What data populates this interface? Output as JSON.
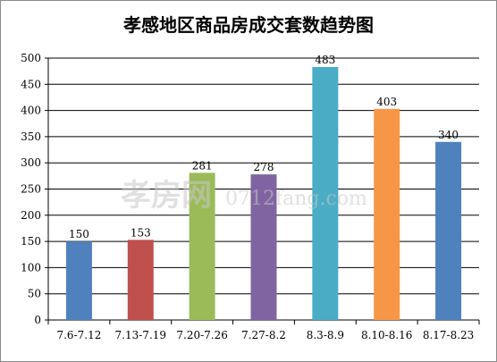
{
  "chart_data": {
    "type": "bar",
    "title": "孝感地区商品房成交套数趋势图",
    "xlabel": "",
    "ylabel": "",
    "categories": [
      "7.6-7.12",
      "7.13-7.19",
      "7.20-7.26",
      "7.27-8.2",
      "8.3-8.9",
      "8.10-8.16",
      "8.17-8.23"
    ],
    "values": [
      150,
      153,
      281,
      278,
      483,
      403,
      340
    ],
    "colors": [
      "#4f81bd",
      "#c0504d",
      "#9bbb59",
      "#8064a2",
      "#4bacc6",
      "#f79646",
      "#4f81bd"
    ],
    "ylim": [
      0,
      500
    ],
    "ytick_step": 50,
    "grid": true,
    "legend": "none"
  },
  "watermark": {
    "cn": "孝房网",
    "en": "0712fang.com"
  }
}
